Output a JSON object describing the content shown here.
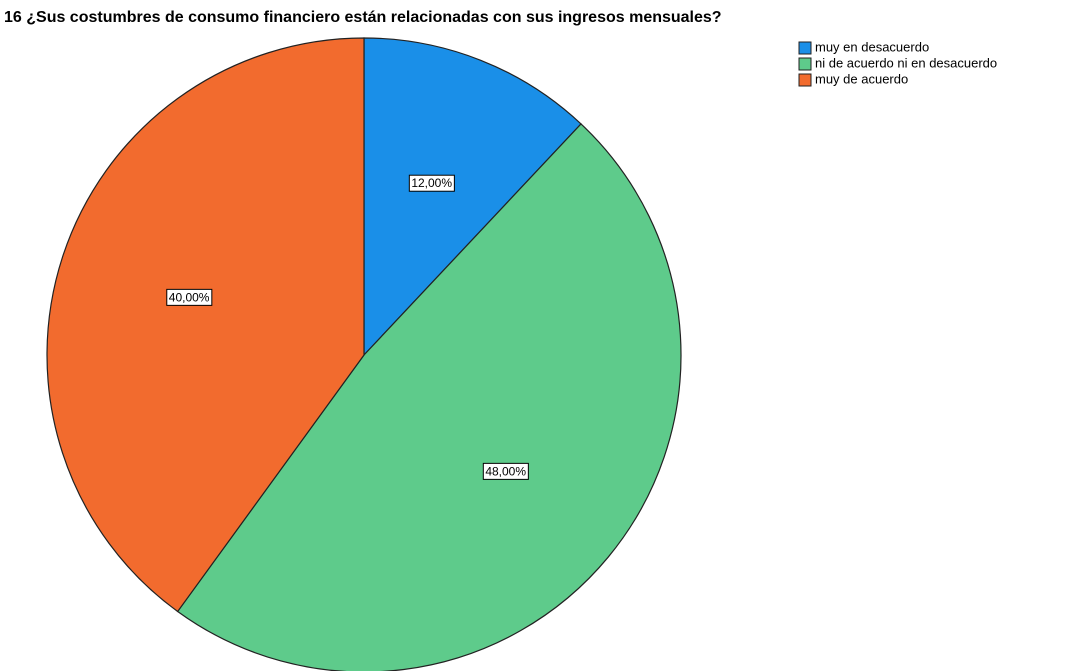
{
  "chart_data": {
    "type": "pie",
    "title": "16 ¿Sus costumbres de consumo financiero están relacionadas con sus ingresos mensuales?",
    "categories": [
      "muy en desacuerdo",
      "ni de acuerdo ni en desacuerdo",
      "muy de acuerdo"
    ],
    "values": [
      12,
      48,
      40
    ],
    "value_labels": [
      "12,00%",
      "48,00%",
      "40,00%"
    ],
    "colors": [
      "#1a8fe8",
      "#5ecb8b",
      "#f26b2e"
    ],
    "legend": "top-right"
  }
}
